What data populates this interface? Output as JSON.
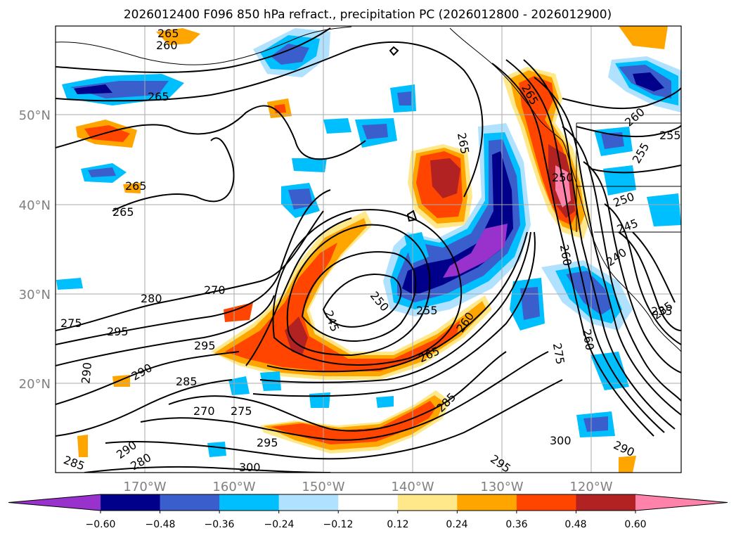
{
  "title": "2026012400 F096 850 hPa refract., precipitation PC (2026012800 - 2026012900)",
  "axes": {
    "lat_labels": [
      "50°N",
      "40°N",
      "30°N",
      "20°N"
    ],
    "lon_labels": [
      "170°W",
      "160°W",
      "150°W",
      "140°W",
      "130°W",
      "120°W"
    ]
  },
  "colorbar": {
    "tick_labels": [
      "−0.60",
      "−0.48",
      "−0.36",
      "−0.24",
      "−0.12",
      "0.12",
      "0.24",
      "0.36",
      "0.48",
      "0.60"
    ],
    "colors": [
      "#9932cc",
      "#00008b",
      "#3a5fcd",
      "#00bfff",
      "#b0e2ff",
      "#ffffff",
      "#ffe88a",
      "#ffa500",
      "#ff4500",
      "#b22222",
      "#ff82ab"
    ]
  },
  "contour_labels": [
    "265",
    "260",
    "265",
    "265",
    "265",
    "265",
    "265",
    "260",
    "255",
    "255",
    "250",
    "250",
    "245",
    "240",
    "235",
    "270",
    "280",
    "275",
    "295",
    "295",
    "290",
    "290",
    "285",
    "270",
    "275",
    "245",
    "250",
    "255",
    "260",
    "265",
    "285",
    "295",
    "290",
    "280",
    "285",
    "300",
    "295",
    "300",
    "290",
    "260",
    "275",
    "260",
    "235"
  ]
}
